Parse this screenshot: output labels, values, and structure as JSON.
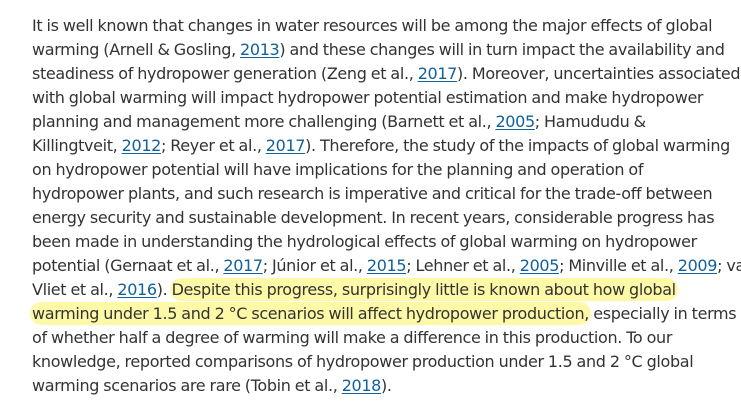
{
  "paragraph": {
    "lines": [
      [
        {
          "type": "text",
          "text": "It is well known that changes in water resources will be among the major effects of global"
        }
      ],
      [
        {
          "type": "text",
          "text": "warming (Arnell & Gosling, "
        },
        {
          "type": "link",
          "text": "2013"
        },
        {
          "type": "text",
          "text": ") and these changes will in turn impact the availability and"
        }
      ],
      [
        {
          "type": "text",
          "text": "steadiness of hydropower generation (Zeng et al., "
        },
        {
          "type": "link",
          "text": "2017"
        },
        {
          "type": "text",
          "text": "). Moreover, uncertainties associated"
        }
      ],
      [
        {
          "type": "text",
          "text": "with global warming will impact hydropower potential estimation and make hydropower"
        }
      ],
      [
        {
          "type": "text",
          "text": "planning and management more challenging (Barnett et al., "
        },
        {
          "type": "link",
          "text": "2005"
        },
        {
          "type": "text",
          "text": "; Hamududu &"
        }
      ],
      [
        {
          "type": "text",
          "text": "Killingtveit, "
        },
        {
          "type": "link",
          "text": "2012"
        },
        {
          "type": "text",
          "text": "; Reyer et al., "
        },
        {
          "type": "link",
          "text": "2017"
        },
        {
          "type": "text",
          "text": "). Therefore, the study of the impacts of global warming"
        }
      ],
      [
        {
          "type": "text",
          "text": "on hydropower potential will have implications for the planning and operation of"
        }
      ],
      [
        {
          "type": "text",
          "text": "hydropower plants, and such research is imperative and critical for the trade-off between"
        }
      ],
      [
        {
          "type": "text",
          "text": "energy security and sustainable development. In recent years, considerable progress has"
        }
      ],
      [
        {
          "type": "text",
          "text": "been made in understanding the hydrological effects of global warming on hydropower"
        }
      ],
      [
        {
          "type": "text",
          "text": "potential (Gernaat et al., "
        },
        {
          "type": "link",
          "text": "2017"
        },
        {
          "type": "text",
          "text": "; Júnior et al., "
        },
        {
          "type": "link",
          "text": "2015"
        },
        {
          "type": "text",
          "text": "; Lehner et al., "
        },
        {
          "type": "link",
          "text": "2005"
        },
        {
          "type": "text",
          "text": "; Minville et al., "
        },
        {
          "type": "link",
          "text": "2009"
        },
        {
          "type": "text",
          "text": "; van"
        }
      ],
      [
        {
          "type": "text",
          "text": "Vliet et al., "
        },
        {
          "type": "link",
          "text": "2016"
        },
        {
          "type": "text",
          "text": "). "
        },
        {
          "type": "highlight",
          "text": "Despite this progress, surprisingly little is known about how global"
        }
      ],
      [
        {
          "type": "highlight",
          "text": "warming under 1.5 and 2 °C scenarios will affect hydropower production,"
        },
        {
          "type": "text",
          "text": " especially in terms"
        }
      ],
      [
        {
          "type": "text",
          "text": "of whether half a degree of warming will make a difference in this production. To our"
        }
      ],
      [
        {
          "type": "text",
          "text": "knowledge, reported comparisons of hydropower production under 1.5 and 2 °C global"
        }
      ],
      [
        {
          "type": "text",
          "text": "warming scenarios are rare (Tobin et al., "
        },
        {
          "type": "link",
          "text": "2018"
        },
        {
          "type": "text",
          "text": ")."
        }
      ]
    ]
  },
  "colors": {
    "text": "#333333",
    "link": "#10609c",
    "highlight": "#fdf9a6",
    "background": "#ffffff"
  }
}
